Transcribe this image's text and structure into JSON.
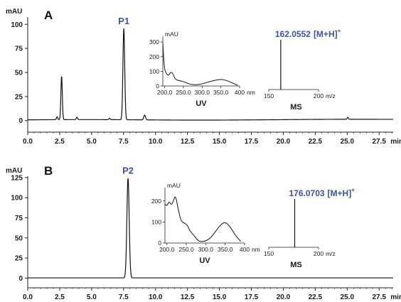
{
  "colors": {
    "trace": "#111111",
    "label": "#3d52a0",
    "axis": "#222222"
  },
  "chart_data": [
    {
      "type": "line",
      "panel_label": "A",
      "y_unit": "mAU",
      "x_unit": "min",
      "xlim": [
        0,
        28.6
      ],
      "ylim": [
        -12,
        112
      ],
      "x_ticks": [
        "0.0",
        "2.5",
        "5.0",
        "7.5",
        "10.0",
        "12.5",
        "15.0",
        "17.5",
        "20.0",
        "22.5",
        "25.0",
        "27.5"
      ],
      "y_ticks": [
        "0",
        "25",
        "50",
        "75",
        "100"
      ],
      "baseline": 0.8,
      "peaks": [
        {
          "x": 2.3,
          "height": 3,
          "width": 0.05
        },
        {
          "x": 2.65,
          "height": 45,
          "width": 0.055
        },
        {
          "x": 3.85,
          "height": 2.5,
          "width": 0.05
        },
        {
          "x": 6.4,
          "height": 1.5,
          "width": 0.05
        },
        {
          "x": 7.52,
          "height": 95,
          "width": 0.07
        },
        {
          "x": 9.15,
          "height": 5,
          "width": 0.07
        },
        {
          "x": 25.05,
          "height": 2,
          "width": 0.05
        }
      ],
      "peak_annotations": [
        {
          "text": "P1",
          "x": 7.52
        }
      ],
      "uv_inset": {
        "y_unit": "mAU",
        "x_unit": "nm",
        "x_ticks": [
          "200.0",
          "250.0",
          "300.0",
          "350.0",
          "400"
        ],
        "y_ticks": [
          "0",
          "100",
          "200",
          "300"
        ],
        "label": "UV",
        "points": [
          [
            195,
            290
          ],
          [
            199,
            120
          ],
          [
            204,
            85
          ],
          [
            210,
            70
          ],
          [
            216,
            95
          ],
          [
            221,
            90
          ],
          [
            228,
            45
          ],
          [
            238,
            36
          ],
          [
            248,
            32
          ],
          [
            258,
            22
          ],
          [
            270,
            10
          ],
          [
            285,
            8
          ],
          [
            300,
            14
          ],
          [
            320,
            30
          ],
          [
            340,
            42
          ],
          [
            352,
            45
          ],
          [
            365,
            38
          ],
          [
            380,
            22
          ],
          [
            395,
            4
          ]
        ]
      },
      "ms_inset": {
        "x_unit": "m/z",
        "x_ticks": [
          "150",
          "200"
        ],
        "label": "MS",
        "ion": {
          "mz": 162.0552,
          "text": "162.0552",
          "adduct": "[M+H]",
          "charge": "+"
        }
      }
    },
    {
      "type": "line",
      "panel_label": "B",
      "y_unit": "mAU",
      "x_unit": "min",
      "xlim": [
        0,
        28.6
      ],
      "ylim": [
        -12,
        132
      ],
      "x_ticks": [
        "0.0",
        "2.5",
        "5.0",
        "7.5",
        "10.0",
        "12.5",
        "15.0",
        "17.5",
        "20.0",
        "22.5",
        "25.0",
        "27.5"
      ],
      "y_ticks": [
        "0",
        "25",
        "50",
        "75",
        "100",
        "125"
      ],
      "baseline": 0.3,
      "peaks": [
        {
          "x": 7.85,
          "height": 124,
          "width": 0.09
        }
      ],
      "peak_annotations": [
        {
          "text": "P2",
          "x": 7.85
        }
      ],
      "uv_inset": {
        "y_unit": "mAU",
        "x_unit": "nm",
        "x_ticks": [
          "200.0",
          "250.0",
          "300.0",
          "350.0",
          "400"
        ],
        "y_ticks": [
          "0",
          "100",
          "200"
        ],
        "label": "UV",
        "points": [
          [
            195,
            185
          ],
          [
            200,
            175
          ],
          [
            206,
            200
          ],
          [
            211,
            180
          ],
          [
            216,
            195
          ],
          [
            222,
            230
          ],
          [
            228,
            170
          ],
          [
            236,
            105
          ],
          [
            244,
            95
          ],
          [
            252,
            88
          ],
          [
            260,
            55
          ],
          [
            268,
            40
          ],
          [
            280,
            10
          ],
          [
            292,
            5
          ],
          [
            310,
            18
          ],
          [
            325,
            55
          ],
          [
            340,
            90
          ],
          [
            350,
            100
          ],
          [
            362,
            80
          ],
          [
            375,
            40
          ],
          [
            390,
            8
          ]
        ]
      },
      "ms_inset": {
        "x_unit": "m/z",
        "x_ticks": [
          "150",
          "200"
        ],
        "label": "MS",
        "ion": {
          "mz": 176.0703,
          "text": "176.0703",
          "adduct": "[M+H]",
          "charge": "+"
        }
      }
    }
  ]
}
